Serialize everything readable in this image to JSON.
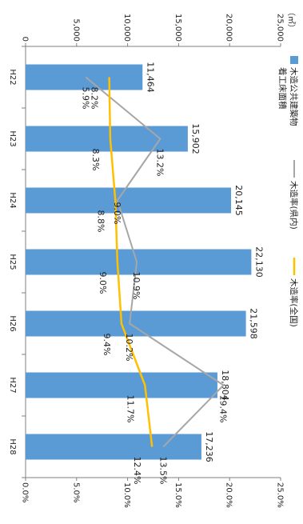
{
  "chart_data": {
    "type": "bar",
    "orientation": "rotated-90-clockwise",
    "title": "",
    "unit_label": "（㎡）",
    "categories": [
      "H22",
      "H23",
      "H24",
      "H25",
      "H26",
      "H27",
      "H28"
    ],
    "series": [
      {
        "name": "木造公共建築物着工床面積",
        "type": "bar",
        "axis": "left",
        "color": "#5b9bd5",
        "values": [
          11464,
          15902,
          20145,
          22130,
          21598,
          18804,
          17236
        ],
        "labels": [
          "11,464",
          "15,902",
          "20,145",
          "22,130",
          "21,598",
          "18,804",
          "17,236"
        ]
      },
      {
        "name": "木造率(県内)",
        "type": "line",
        "axis": "right",
        "color": "#a6a6a6",
        "values": [
          5.9,
          13.2,
          9.0,
          10.9,
          10.2,
          19.4,
          13.5
        ],
        "labels": [
          "5.9%",
          "13.2%",
          "9.0%",
          "10.9%",
          "10.2%",
          "19.4%",
          "13.5%"
        ]
      },
      {
        "name": "木造率(全国)",
        "type": "line",
        "axis": "right",
        "color": "#ffc000",
        "values": [
          8.2,
          8.3,
          8.8,
          9.0,
          9.4,
          11.7,
          12.4
        ],
        "labels": [
          "8.2%",
          "8.3%",
          "8.8%",
          "9.0%",
          "9.4%",
          "11.7%",
          "12.4%"
        ]
      }
    ],
    "left_axis": {
      "min": 0,
      "max": 25000,
      "ticks": [
        0,
        5000,
        10000,
        15000,
        20000,
        25000
      ],
      "tick_labels": [
        "0",
        "5,000",
        "10,000",
        "15,000",
        "20,000",
        "25,000"
      ]
    },
    "right_axis": {
      "min": 0,
      "max": 25,
      "ticks": [
        0,
        5,
        10,
        15,
        20,
        25
      ],
      "tick_labels": [
        "0.0%",
        "5.0%",
        "10.0%",
        "15.0%",
        "20.0%",
        "25.0%"
      ]
    },
    "legend": {
      "placement": "top-left",
      "items": [
        {
          "lines": [
            "木造公共建築物",
            "着工床面積"
          ],
          "color": "#5b9bd5",
          "kind": "bar"
        },
        {
          "lines": [
            "木造率(県内)"
          ],
          "color": "#a6a6a6",
          "kind": "line"
        },
        {
          "lines": [
            "木造率(全国)"
          ],
          "color": "#ffc000",
          "kind": "line"
        }
      ]
    },
    "grid": false
  }
}
